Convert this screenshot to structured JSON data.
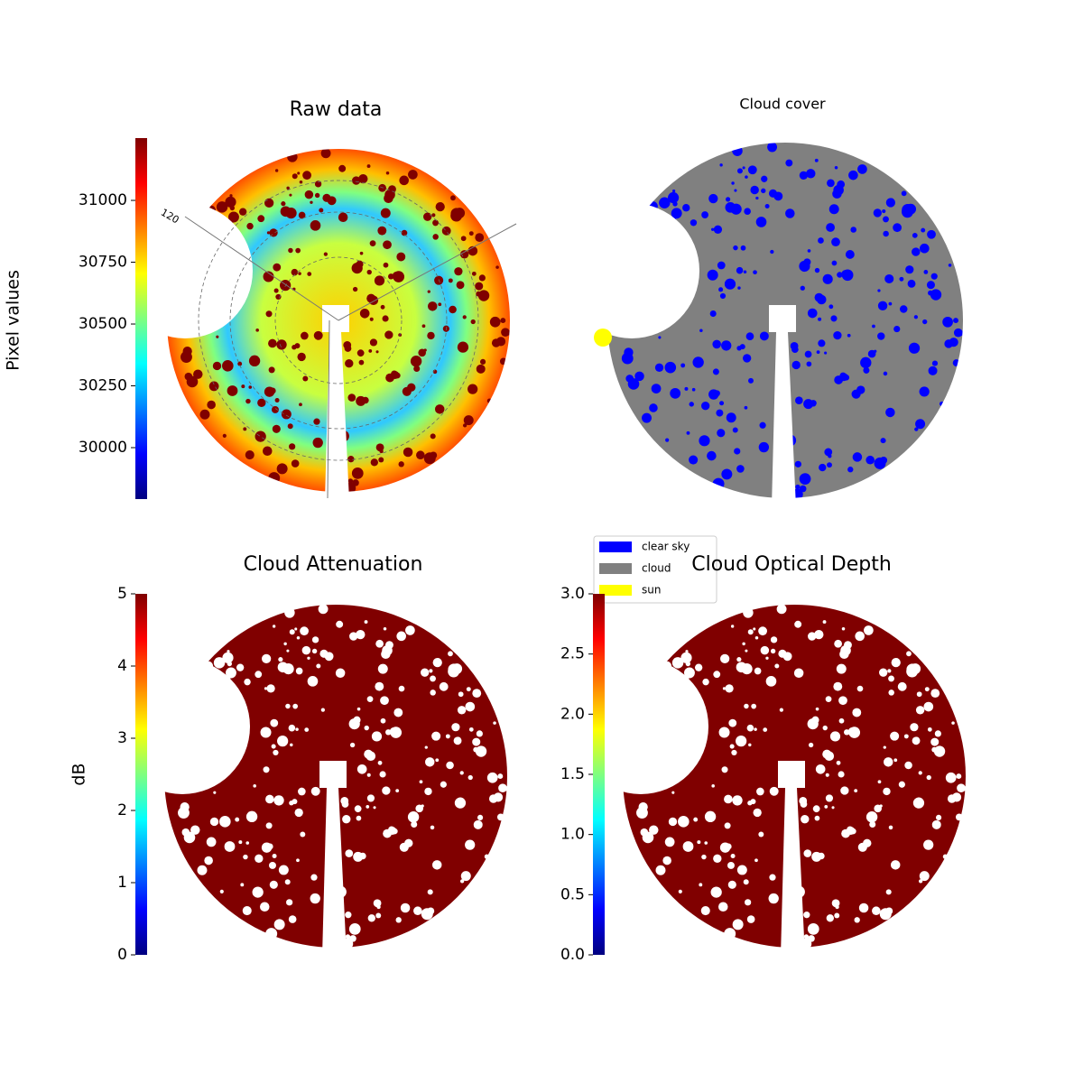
{
  "chart_data": [
    {
      "type": "image",
      "title": "Raw data",
      "colorbar_label": "Pixel values",
      "colormap": "jet",
      "clim": [
        29792,
        31252
      ],
      "cticks": [
        30000,
        30250,
        30500,
        30750,
        31000
      ],
      "annotations": [
        "120"
      ]
    },
    {
      "type": "image",
      "title": "Cloud cover",
      "series": [
        {
          "name": "clear sky",
          "color": "#0000ff"
        },
        {
          "name": "cloud",
          "color": "#808080"
        },
        {
          "name": "sun",
          "color": "#ffff00"
        }
      ]
    },
    {
      "type": "image",
      "title": "Cloud Attenuation",
      "colorbar_label": "dB",
      "colormap": "jet",
      "clim": [
        0,
        5
      ],
      "cticks": [
        0,
        1,
        2,
        3,
        4,
        5
      ]
    },
    {
      "type": "image",
      "title": "Cloud Optical Depth",
      "colormap": "jet",
      "clim": [
        0,
        3
      ],
      "cticks": [
        {
          "value": 0,
          "label": "0.0"
        },
        0.5,
        {
          "value": 1,
          "label": "1.0"
        },
        1.5,
        {
          "value": 2,
          "label": "2.0"
        },
        2.5,
        {
          "value": 3,
          "label": "3.0"
        }
      ]
    }
  ]
}
